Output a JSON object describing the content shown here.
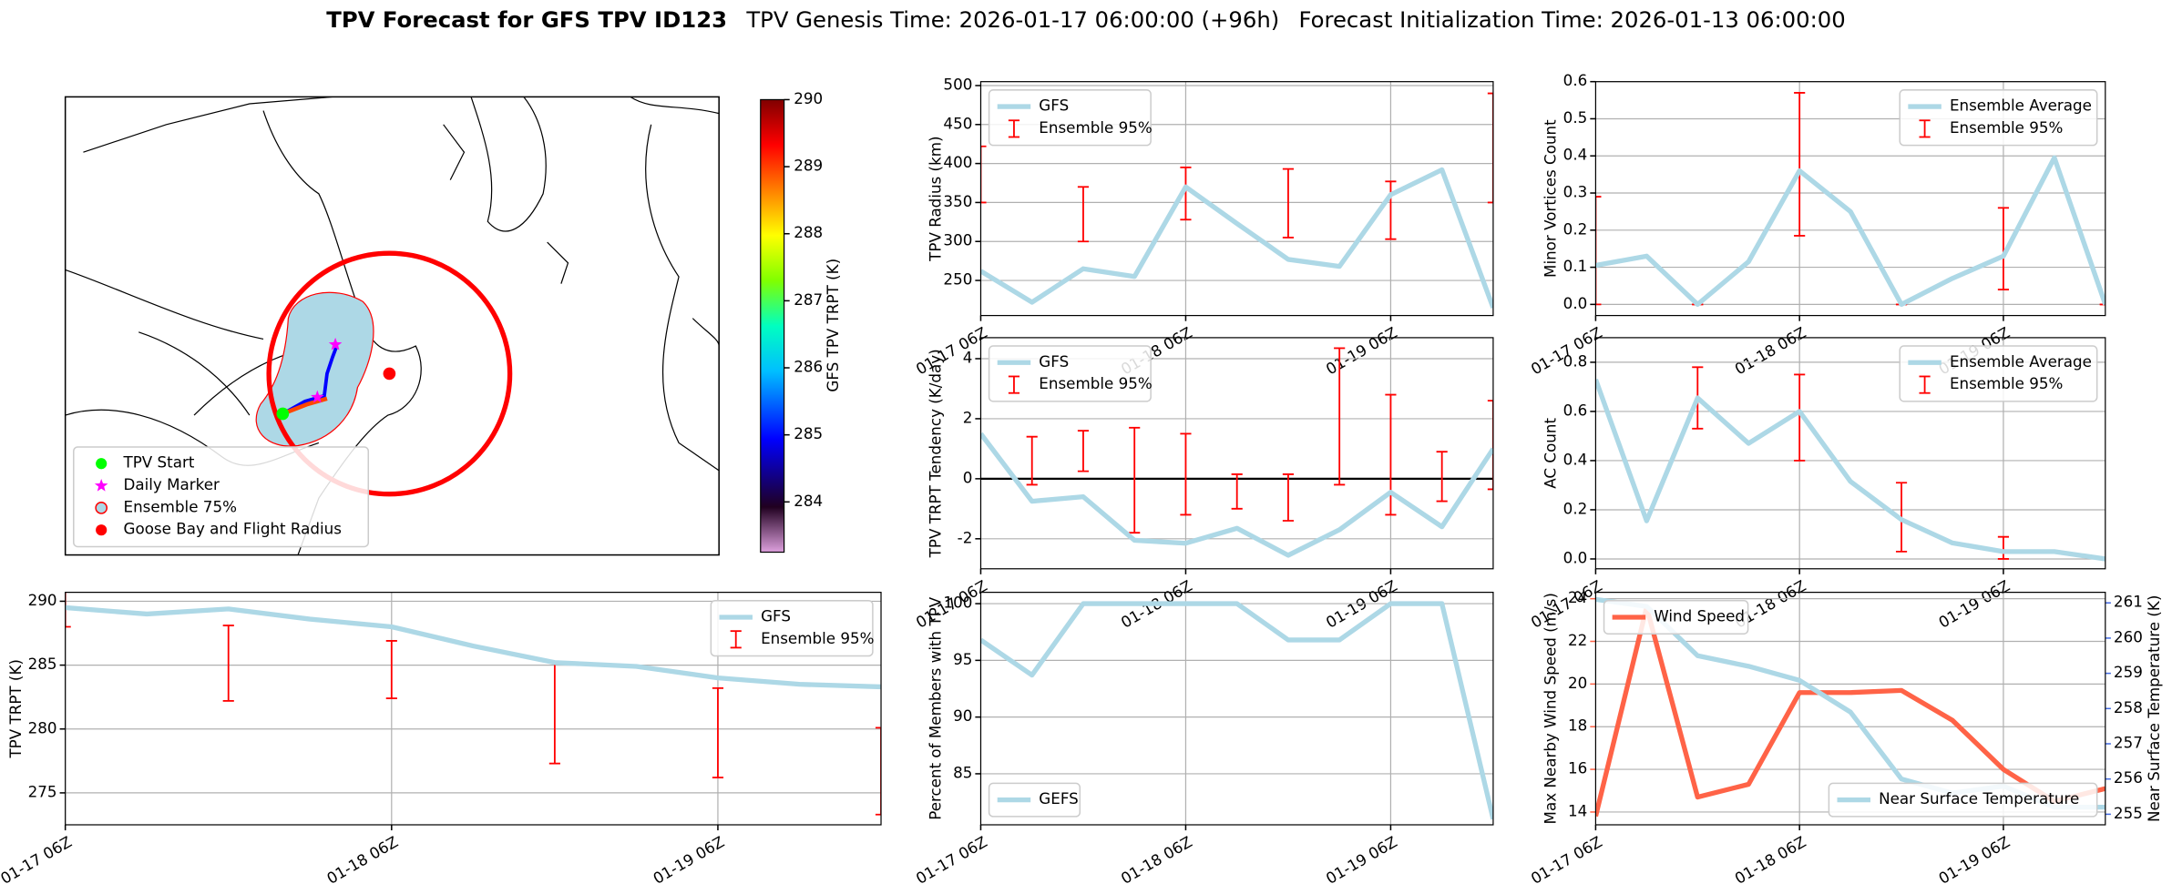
{
  "figure": {
    "title": "TPV Forecast for GFS TPV ID123",
    "genesis_time": "TPV Genesis Time: 2026-01-17 06:00:00 (+96h)",
    "init_time": "Forecast Initialization Time: 2026-01-13 06:00:00"
  },
  "chart_data": [
    {
      "type": "map",
      "colorbar_label": "GFS TPV TRPT (K)",
      "clim": [
        283.25,
        290
      ],
      "cticks": [
        284,
        285,
        286,
        287,
        288,
        289,
        290
      ],
      "legend": "lower left",
      "legend_entries": [
        {
          "label": "TPV Start",
          "color": "#00ff00"
        },
        {
          "label": "Daily Marker",
          "color": "#ff00ff"
        },
        {
          "label": "Ensemble 75%",
          "color": "#add8e6"
        },
        {
          "label": "Goose Bay and Flight Radius",
          "color": "#ff0000"
        }
      ]
    },
    {
      "type": "line",
      "ylabel": "TPV Radius (km)",
      "categories": [
        "01-17 06Z",
        null,
        null,
        null,
        "01-18 06Z",
        null,
        null,
        null,
        "01-19 06Z",
        null,
        null
      ],
      "series": [
        {
          "name": "GFS",
          "color": "#add8e6",
          "values": [
            262,
            222,
            265,
            255,
            370,
            323,
            277,
            268,
            360,
            392,
            215
          ]
        }
      ],
      "error_bars": {
        "name": "Ensemble 95%",
        "color": "#ff0000",
        "low": [
          350,
          null,
          300,
          null,
          328,
          null,
          305,
          null,
          303,
          null,
          350
        ],
        "high": [
          422,
          null,
          370,
          null,
          395,
          null,
          393,
          null,
          377,
          null,
          490
        ]
      },
      "ylim": [
        205,
        505
      ],
      "yticks": [
        250,
        300,
        350,
        400,
        450,
        500
      ],
      "grid": true,
      "legend": "upper left"
    },
    {
      "type": "line",
      "ylabel": "Minor Vortices Count",
      "categories": [
        "01-17 06Z",
        null,
        null,
        null,
        "01-18 06Z",
        null,
        null,
        null,
        "01-19 06Z",
        null,
        null
      ],
      "series": [
        {
          "name": "Ensemble Average",
          "color": "#add8e6",
          "values": [
            0.105,
            0.13,
            0.0,
            0.115,
            0.36,
            0.25,
            0.0,
            0.07,
            0.13,
            0.395,
            0.0
          ]
        }
      ],
      "error_bars": {
        "name": "Ensemble 95%",
        "color": "#ff0000",
        "low": [
          0.0,
          null,
          0.0,
          null,
          0.185,
          null,
          0.0,
          null,
          0.04,
          null,
          0.0
        ],
        "high": [
          0.29,
          null,
          0.0,
          null,
          0.57,
          null,
          0.0,
          null,
          0.26,
          null,
          0.0
        ]
      },
      "ylim": [
        -0.03,
        0.6
      ],
      "yticks": [
        {
          "value": 0,
          "label": "0.0"
        },
        0.1,
        0.2,
        0.3,
        0.4,
        0.5,
        0.6
      ],
      "grid": true,
      "legend": "upper right"
    },
    {
      "type": "line",
      "ylabel": "TPV TRPT Tendency (K/day)",
      "categories": [
        "01-17 06Z",
        null,
        null,
        null,
        "01-18 06Z",
        null,
        null,
        null,
        "01-19 06Z",
        null,
        null
      ],
      "series": [
        {
          "name": "GFS",
          "color": "#add8e6",
          "values": [
            1.5,
            -0.75,
            -0.6,
            -2.05,
            -2.15,
            -1.65,
            -2.55,
            -1.7,
            -0.45,
            -1.6,
            1.0
          ]
        }
      ],
      "error_bars": {
        "name": "Ensemble 95%",
        "color": "#ff0000",
        "low": [
          null,
          -0.2,
          0.25,
          -1.8,
          -1.2,
          -1.0,
          -1.4,
          -0.2,
          -1.2,
          -0.75,
          -0.35
        ],
        "high": [
          null,
          1.4,
          1.6,
          1.7,
          1.5,
          0.15,
          0.15,
          4.35,
          2.8,
          0.9,
          2.6
        ]
      },
      "axhline": 0,
      "ylim": [
        -3,
        4.7
      ],
      "yticks": [
        -2,
        0,
        2,
        4
      ],
      "grid": true,
      "legend": "upper left"
    },
    {
      "type": "line",
      "ylabel": "AC Count",
      "categories": [
        "01-17 06Z",
        null,
        null,
        null,
        "01-18 06Z",
        null,
        null,
        null,
        "01-19 06Z",
        null,
        null
      ],
      "series": [
        {
          "name": "Ensemble Average",
          "color": "#add8e6",
          "values": [
            0.73,
            0.155,
            0.655,
            0.47,
            0.6,
            0.315,
            0.16,
            0.065,
            0.03,
            0.03,
            0.0
          ]
        }
      ],
      "error_bars": {
        "name": "Ensemble 95%",
        "color": "#ff0000",
        "low": [
          null,
          null,
          0.53,
          null,
          0.4,
          null,
          0.03,
          null,
          0.0,
          null,
          null
        ],
        "high": [
          null,
          null,
          0.78,
          null,
          0.75,
          null,
          0.31,
          null,
          0.09,
          null,
          null
        ]
      },
      "ylim": [
        -0.04,
        0.9
      ],
      "yticks": [
        {
          "value": 0,
          "label": "0.0"
        },
        0.2,
        0.4,
        0.6,
        0.8
      ],
      "grid": true,
      "legend": "upper right"
    },
    {
      "type": "line",
      "ylabel": "TPV TRPT (K)",
      "categories": [
        "01-17 06Z",
        null,
        null,
        null,
        "01-18 06Z",
        null,
        null,
        null,
        "01-19 06Z",
        null,
        null
      ],
      "series": [
        {
          "name": "GFS",
          "color": "#add8e6",
          "values": [
            289.5,
            289.0,
            289.4,
            288.6,
            288.0,
            286.5,
            285.2,
            284.9,
            284.0,
            283.5,
            283.3
          ]
        }
      ],
      "error_bars": {
        "name": "Ensemble 95%",
        "color": "#ff0000",
        "low": [
          288.0,
          null,
          282.2,
          null,
          282.4,
          null,
          277.3,
          null,
          276.2,
          null,
          273.3
        ],
        "high": [
          291.0,
          null,
          288.1,
          null,
          286.9,
          null,
          285.2,
          null,
          283.2,
          null,
          280.1
        ]
      },
      "ylim": [
        272.5,
        290.7
      ],
      "yticks": [
        275,
        280,
        285,
        290
      ],
      "grid": true,
      "legend": "upper right"
    },
    {
      "type": "line",
      "ylabel": "Percent of Members with TPV",
      "categories": [
        "01-17 06Z",
        null,
        null,
        null,
        "01-18 06Z",
        null,
        null,
        null,
        "01-19 06Z",
        null,
        null
      ],
      "series": [
        {
          "name": "GEFS",
          "color": "#add8e6",
          "values": [
            96.8,
            93.7,
            100,
            100,
            100,
            100,
            96.8,
            96.8,
            100,
            100,
            81
          ]
        }
      ],
      "ylim": [
        80.5,
        101
      ],
      "yticks": [
        85,
        90,
        95,
        100
      ],
      "grid": true,
      "legend": "lower left"
    },
    {
      "type": "line",
      "ylabel": "Max Nearby Wind Speed (m/s)",
      "ylabel_color": "#ff6347",
      "y2label": "Near Surface Temperature (K)",
      "y2label_color": "#4169e1",
      "categories": [
        "01-17 06Z",
        null,
        null,
        null,
        "01-18 06Z",
        null,
        null,
        null,
        "01-19 06Z",
        null,
        null
      ],
      "series": [
        {
          "name": "Wind Speed",
          "color": "#ff6347",
          "values": [
            13.8,
            23.6,
            14.7,
            15.3,
            19.6,
            19.6,
            19.7,
            18.3,
            16.0,
            14.5,
            15.1
          ]
        },
        {
          "name": "Near Surface Temperature",
          "color": "#add8e6",
          "axis": "y2",
          "values": [
            261.1,
            260.9,
            259.5,
            259.2,
            258.8,
            257.9,
            256.0,
            255.6,
            255.8,
            255.2,
            255.2
          ]
        }
      ],
      "ylim": [
        13.4,
        24.3
      ],
      "yticks": [
        14,
        16,
        18,
        20,
        22,
        24
      ],
      "y2lim": [
        254.7,
        261.3
      ],
      "y2ticks": [
        255,
        256,
        257,
        258,
        259,
        260,
        261
      ],
      "grid": true,
      "legend": "upper left",
      "legend2": "lower right"
    }
  ]
}
